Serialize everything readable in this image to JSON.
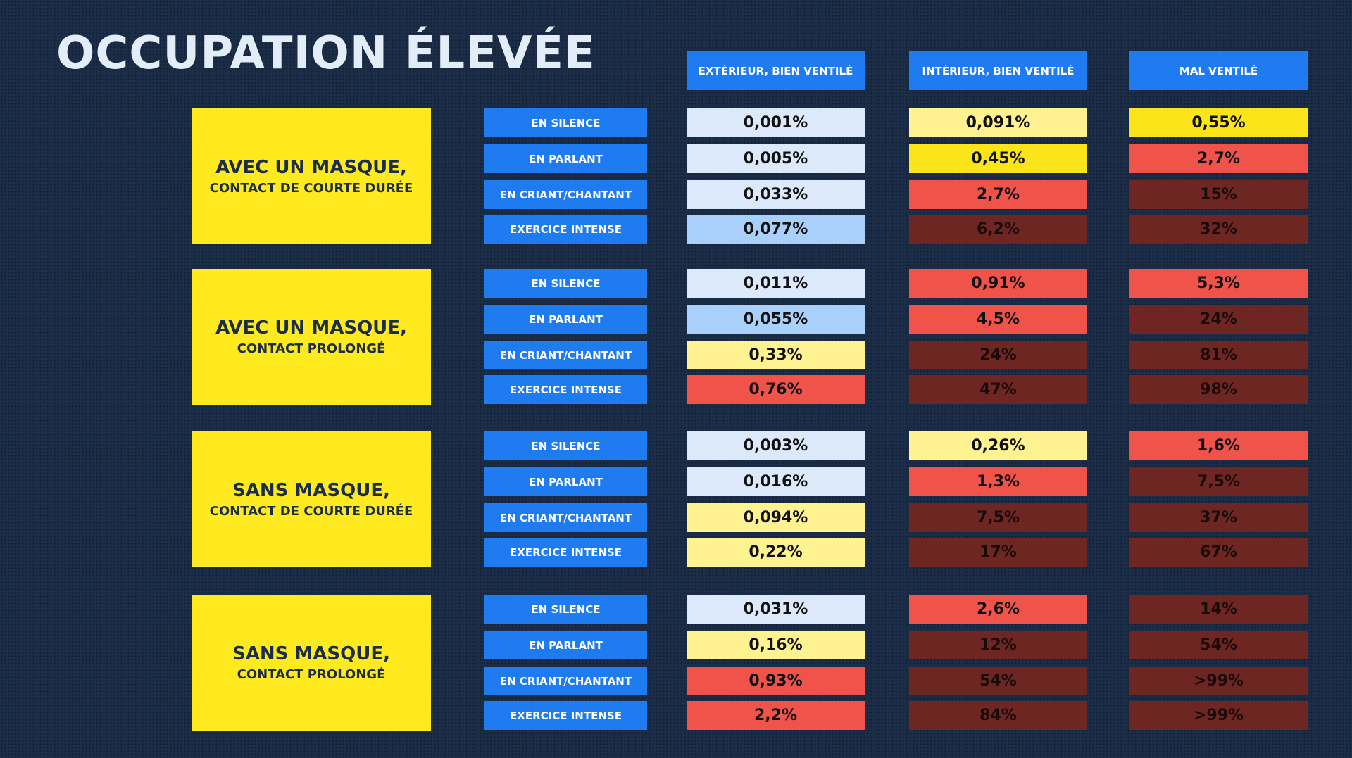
{
  "title": "OCCUPATION ÉLEVÉE",
  "columns": [
    "EXTÉRIEUR, BIEN VENTILÉ",
    "INTÉRIEUR, BIEN VENTILÉ",
    "MAL VENTILÉ"
  ],
  "activities": [
    "EN SILENCE",
    "EN PARLANT",
    "EN CRIANT/CHANTANT",
    "EXERCICE INTENSE"
  ],
  "level_colors": {
    "0": "#dbe9fb",
    "1": "#a8d0fa",
    "2": "#fff290",
    "3": "#fbe51a",
    "4": "#f0534a",
    "5": "#6d2622"
  },
  "groups": [
    {
      "main": "AVEC UN MASQUE,",
      "sub": "CONTACT DE COURTE DURÉE",
      "rows": [
        {
          "values": [
            "0,001%",
            "0,091%",
            "0,55%"
          ],
          "levels": [
            0,
            2,
            3
          ]
        },
        {
          "values": [
            "0,005%",
            "0,45%",
            "2,7%"
          ],
          "levels": [
            0,
            3,
            4
          ]
        },
        {
          "values": [
            "0,033%",
            "2,7%",
            "15%"
          ],
          "levels": [
            0,
            4,
            5
          ]
        },
        {
          "values": [
            "0,077%",
            "6,2%",
            "32%"
          ],
          "levels": [
            1,
            5,
            5
          ]
        }
      ]
    },
    {
      "main": "AVEC UN MASQUE,",
      "sub": "CONTACT PROLONGÉ",
      "rows": [
        {
          "values": [
            "0,011%",
            "0,91%",
            "5,3%"
          ],
          "levels": [
            0,
            4,
            4
          ]
        },
        {
          "values": [
            "0,055%",
            "4,5%",
            "24%"
          ],
          "levels": [
            1,
            4,
            5
          ]
        },
        {
          "values": [
            "0,33%",
            "24%",
            "81%"
          ],
          "levels": [
            2,
            5,
            5
          ]
        },
        {
          "values": [
            "0,76%",
            "47%",
            "98%"
          ],
          "levels": [
            4,
            5,
            5
          ]
        }
      ]
    },
    {
      "main": "SANS MASQUE,",
      "sub": "CONTACT DE COURTE DURÉE",
      "rows": [
        {
          "values": [
            "0,003%",
            "0,26%",
            "1,6%"
          ],
          "levels": [
            0,
            2,
            4
          ]
        },
        {
          "values": [
            "0,016%",
            "1,3%",
            "7,5%"
          ],
          "levels": [
            0,
            4,
            5
          ]
        },
        {
          "values": [
            "0,094%",
            "7,5%",
            "37%"
          ],
          "levels": [
            2,
            5,
            5
          ]
        },
        {
          "values": [
            "0,22%",
            "17%",
            "67%"
          ],
          "levels": [
            2,
            5,
            5
          ]
        }
      ]
    },
    {
      "main": "SANS MASQUE,",
      "sub": "CONTACT PROLONGÉ",
      "rows": [
        {
          "values": [
            "0,031%",
            "2,6%",
            "14%"
          ],
          "levels": [
            0,
            4,
            5
          ]
        },
        {
          "values": [
            "0,16%",
            "12%",
            "54%"
          ],
          "levels": [
            2,
            5,
            5
          ]
        },
        {
          "values": [
            "0,93%",
            "54%",
            ">99%"
          ],
          "levels": [
            4,
            5,
            5
          ]
        },
        {
          "values": [
            "2,2%",
            "84%",
            ">99%"
          ],
          "levels": [
            4,
            5,
            5
          ]
        }
      ]
    }
  ]
}
